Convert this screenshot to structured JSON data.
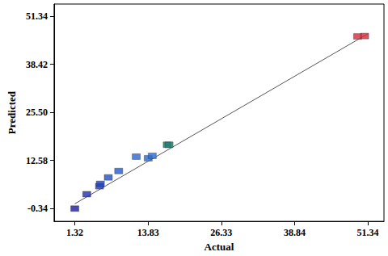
{
  "chart_data": {
    "type": "scatter",
    "x_label": "Actual",
    "y_label": "Predicted",
    "xlim": [
      -2.22,
      54.1
    ],
    "ylim": [
      -3.77,
      54.6
    ],
    "xticks": [
      1.32,
      13.83,
      26.33,
      38.84,
      51.34
    ],
    "yticks": [
      -0.34,
      12.58,
      {
        "value": 25.5,
        "label": "25.50"
      },
      38.42,
      51.34
    ],
    "grid": false,
    "marker": "square",
    "series": [
      {
        "type": "scatter",
        "x": [
          1.32,
          3.36,
          5.54,
          5.68,
          7.04,
          8.81,
          11.81,
          13.85,
          14.54,
          17.1,
          17.4,
          49.6,
          50.8
        ],
        "values": [
          -0.34,
          3.52,
          5.67,
          6.31,
          8.03,
          9.75,
          13.61,
          13.18,
          13.82,
          16.8,
          16.8,
          45.9,
          46.0
        ],
        "colors": [
          "#1c1c9c",
          "#1f2fb0",
          "#2040bb",
          "#2040bb",
          "#2450c4",
          "#2659c8",
          "#2a66cf",
          "#2a66cf",
          "#2b6cd2",
          "#1d7d6e",
          "#1d7d6e",
          "#d42a3a",
          "#d42a3a"
        ]
      },
      {
        "type": "line",
        "x": [
          1.32,
          51.34
        ],
        "values": [
          0.95,
          46.6
        ],
        "color": "#555555",
        "line_style": "solid"
      }
    ]
  }
}
